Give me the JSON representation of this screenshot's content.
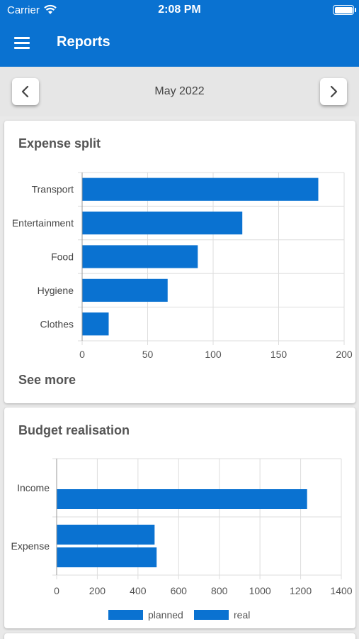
{
  "status_bar": {
    "carrier": "Carrier",
    "time": "2:08 PM"
  },
  "app_bar": {
    "title": "Reports",
    "menu_icon": "hamburger-menu-icon"
  },
  "month_nav": {
    "label": "May 2022",
    "prev_icon": "chevron-left-icon",
    "next_icon": "chevron-right-icon"
  },
  "expense_card": {
    "title": "Expense split",
    "see_more": "See more"
  },
  "budget_card": {
    "title": "Budget realisation"
  },
  "colors": {
    "accent": "#0a72d1",
    "bar": "#0a72d1",
    "grid": "#dddddd"
  },
  "chart_data": [
    {
      "type": "bar",
      "orientation": "horizontal",
      "categories": [
        "Transport",
        "Entertainment",
        "Food",
        "Hygiene",
        "Clothes"
      ],
      "values": [
        180,
        122,
        88,
        65,
        20
      ],
      "xlim": [
        0,
        200
      ],
      "xticks": [
        "0",
        "50",
        "100",
        "150",
        "200"
      ],
      "grid": true
    },
    {
      "type": "bar",
      "orientation": "horizontal",
      "categories": [
        "Income",
        "Expense"
      ],
      "series": [
        {
          "name": "planned",
          "values": [
            null,
            480
          ]
        },
        {
          "name": "real",
          "values": [
            1230,
            490
          ]
        }
      ],
      "xlim": [
        0,
        1400
      ],
      "xticks": [
        "0",
        "200",
        "400",
        "600",
        "800",
        "1000",
        "1200",
        "1400"
      ],
      "grid": true,
      "legend": "bottom"
    }
  ]
}
